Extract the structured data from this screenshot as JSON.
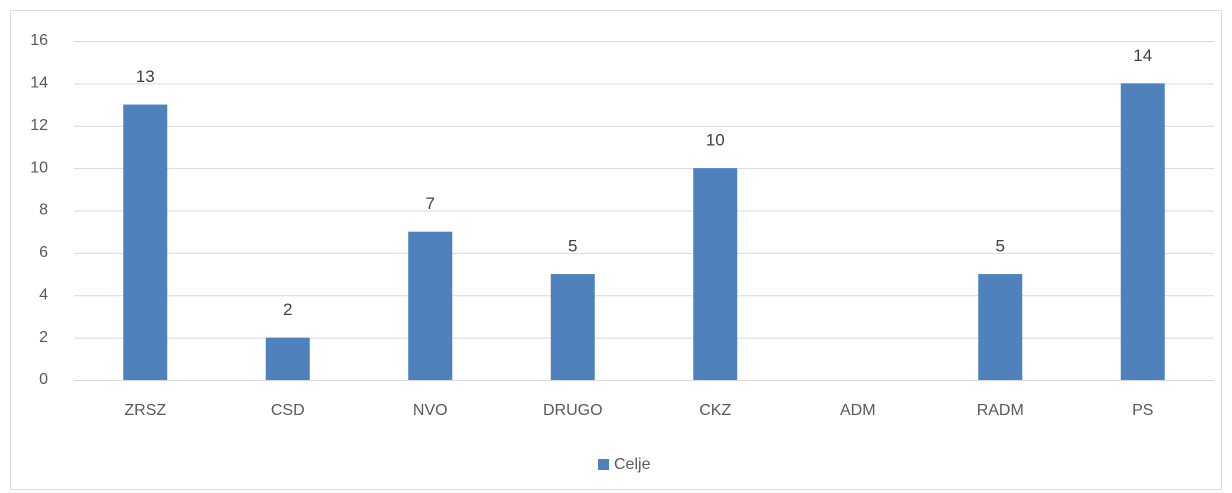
{
  "chart_data": {
    "type": "bar",
    "categories": [
      "ZRSZ",
      "CSD",
      "NVO",
      "DRUGO",
      "CKZ",
      "ADM",
      "RADM",
      "PS"
    ],
    "series": [
      {
        "name": "Celje",
        "color": "#4f81bd",
        "values": [
          13,
          2,
          7,
          5,
          10,
          null,
          5,
          14
        ]
      }
    ],
    "ylim": [
      0,
      16
    ],
    "yticks": [
      0,
      2,
      4,
      6,
      8,
      10,
      12,
      14,
      16
    ],
    "grid": true,
    "legend": "bottom"
  }
}
